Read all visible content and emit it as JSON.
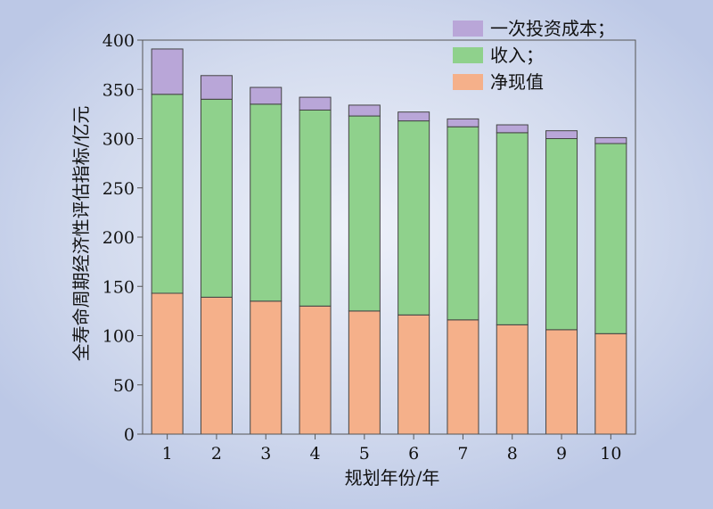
{
  "chart_data": {
    "type": "bar",
    "stacked": true,
    "categories": [
      "1",
      "2",
      "3",
      "4",
      "5",
      "6",
      "7",
      "8",
      "9",
      "10"
    ],
    "series": [
      {
        "name": "净现值",
        "color": "#f5b08a",
        "values": [
          143,
          139,
          135,
          130,
          125,
          121,
          116,
          111,
          106,
          102
        ]
      },
      {
        "name": "收入；",
        "color": "#8fd18c",
        "values": [
          202,
          201,
          200,
          199,
          198,
          197,
          196,
          195,
          194,
          193
        ]
      },
      {
        "name": "一次投资成本；",
        "color": "#b9a6d8",
        "values": [
          46,
          24,
          17,
          13,
          11,
          9,
          8,
          8,
          8,
          6
        ]
      }
    ],
    "legend_order": [
      2,
      1,
      0
    ],
    "xlabel": "规划年份/年",
    "ylabel": "全寿命周期经济性评估指标/亿元",
    "ylim": [
      0,
      400
    ],
    "yticks": [
      0,
      50,
      100,
      150,
      200,
      250,
      300,
      350,
      400
    ],
    "grid": false,
    "legend_position": "top-right"
  }
}
